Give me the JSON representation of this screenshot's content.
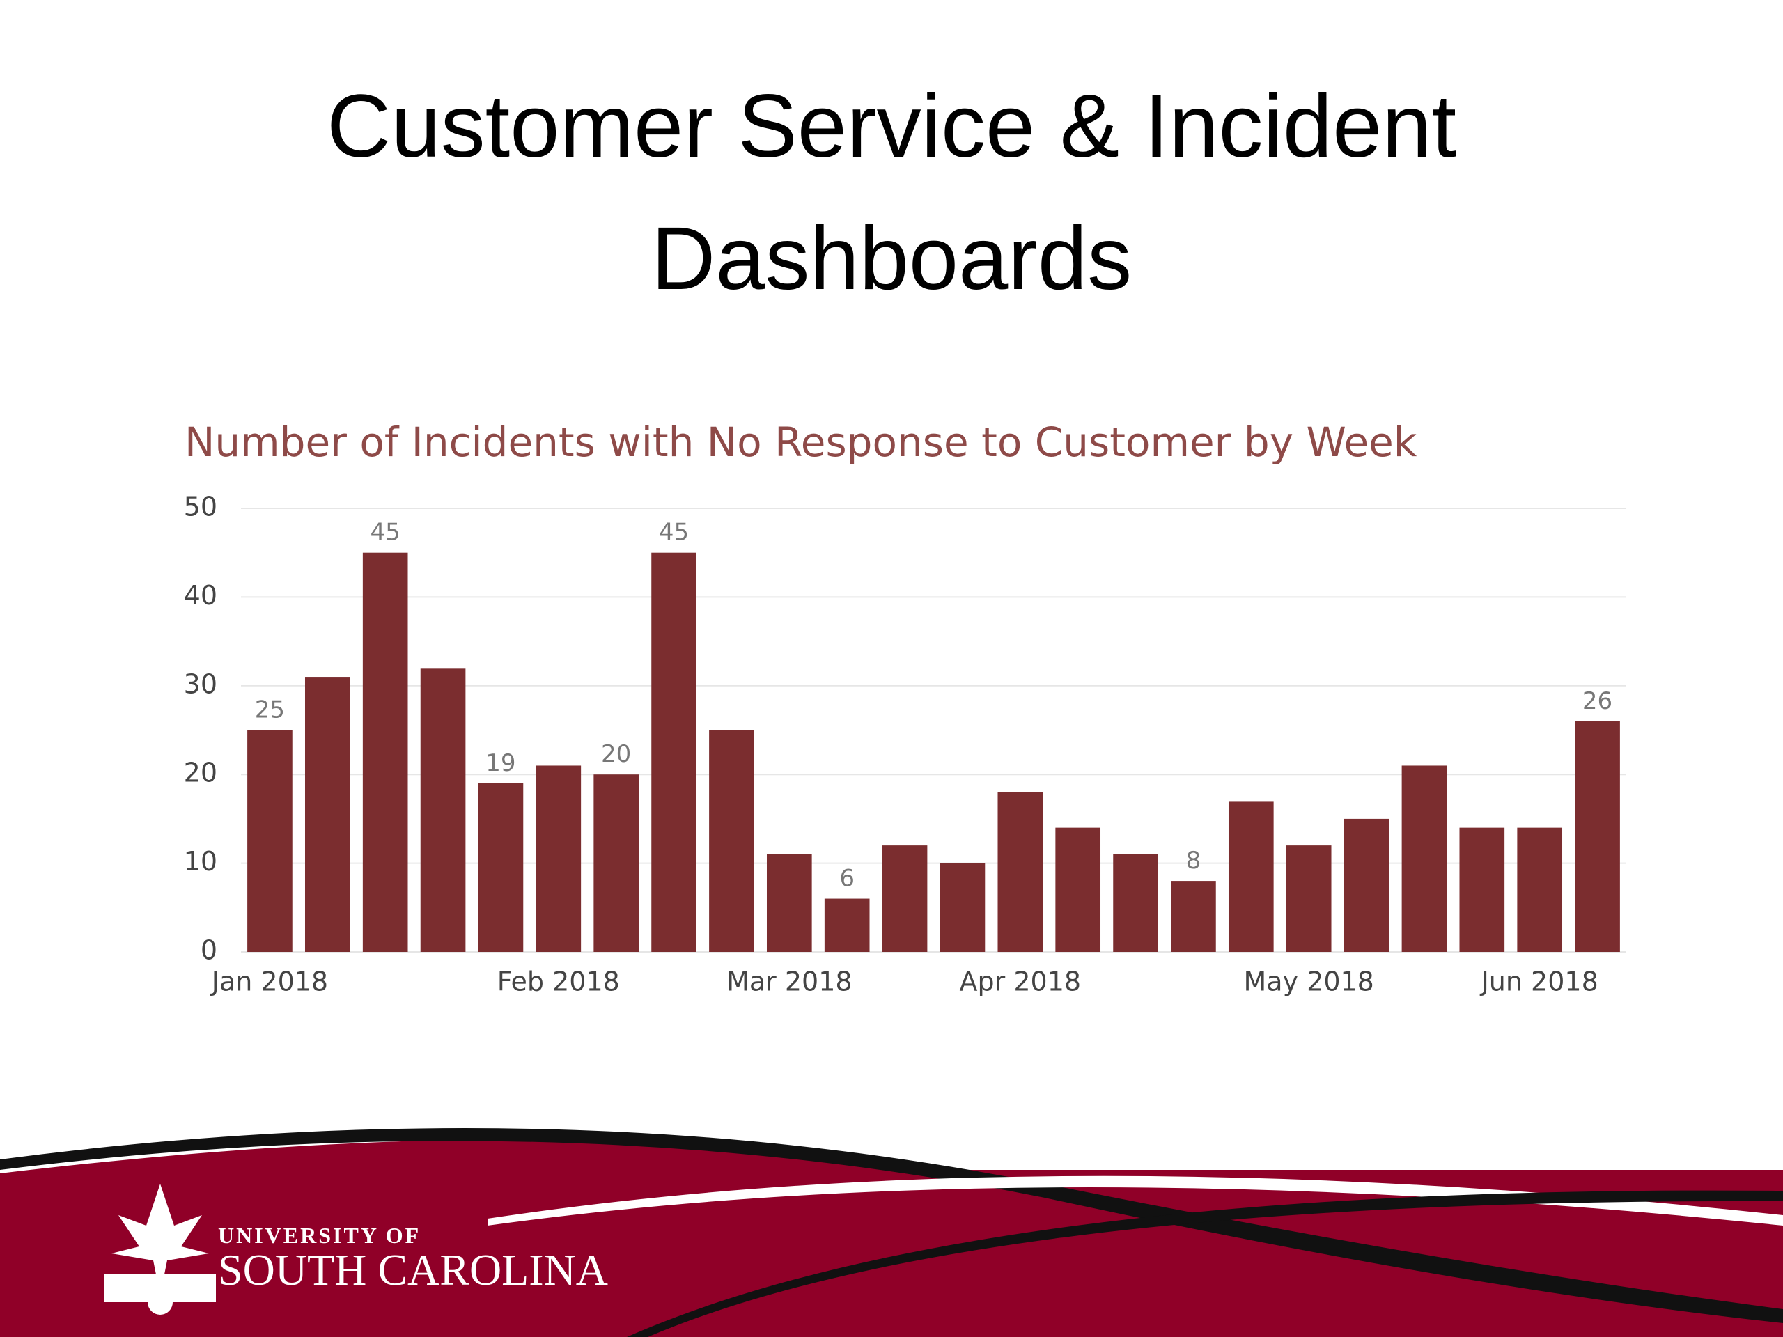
{
  "title_lines": [
    "Customer Service & Incident",
    "Dashboards"
  ],
  "chart_data": {
    "type": "bar",
    "title": "Number of Incidents with No Response to Customer by Week",
    "categories": [
      "Jan 2018",
      null,
      null,
      null,
      null,
      "Feb 2018",
      null,
      null,
      null,
      "Mar 2018",
      null,
      null,
      null,
      "Apr 2018",
      null,
      null,
      null,
      null,
      "May 2018",
      null,
      null,
      null,
      "Jun 2018",
      null
    ],
    "values": [
      25,
      31,
      45,
      32,
      19,
      21,
      20,
      45,
      25,
      11,
      6,
      12,
      10,
      18,
      14,
      11,
      8,
      17,
      12,
      15,
      21,
      14,
      14,
      26
    ],
    "value_labels": [
      "25",
      null,
      "45",
      null,
      "19",
      null,
      "20",
      "45",
      null,
      null,
      "6",
      null,
      null,
      null,
      null,
      null,
      "8",
      null,
      null,
      null,
      null,
      null,
      null,
      "26"
    ],
    "color": "#7b2d2f",
    "ylim": [
      0,
      50
    ],
    "yticks": [
      0,
      10,
      20,
      30,
      40,
      50
    ],
    "grid": true
  },
  "footer": {
    "line1": "UNIVERSITY OF",
    "line2": "SOUTH CAROLINA"
  }
}
